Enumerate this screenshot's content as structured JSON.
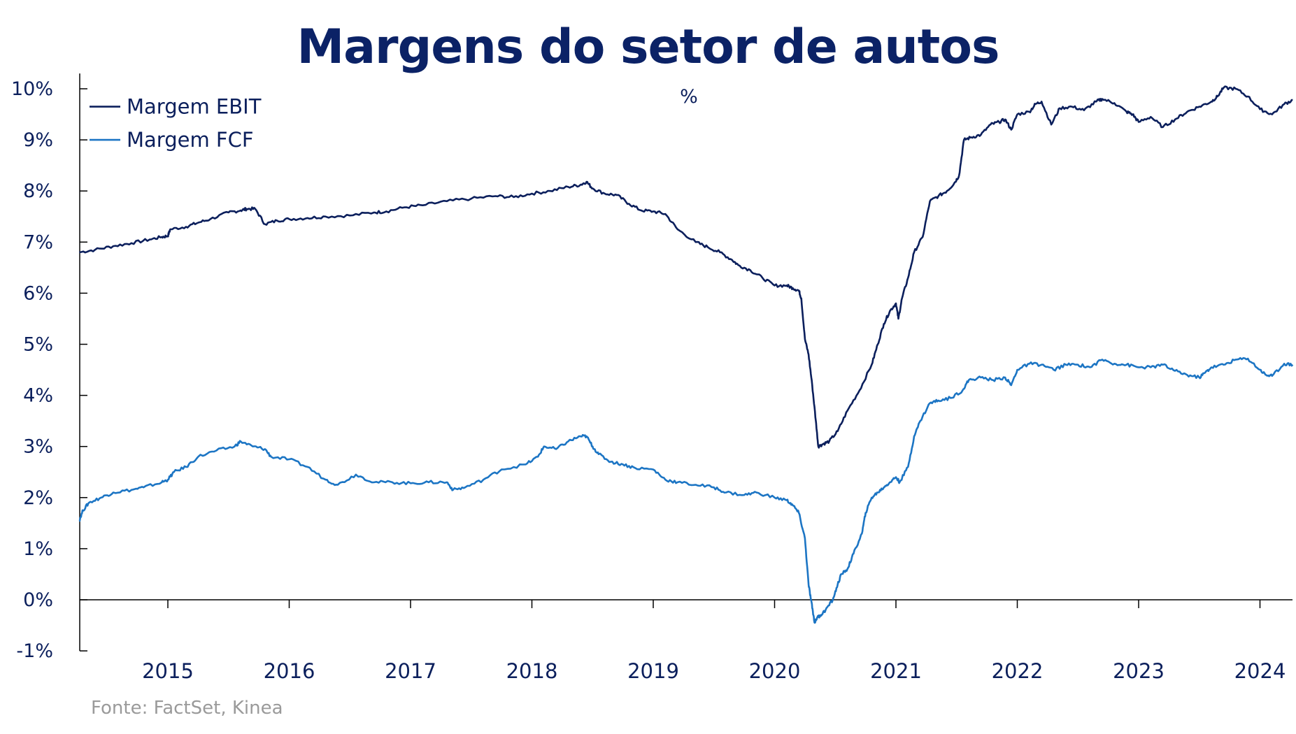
{
  "chart_data": {
    "type": "line",
    "title": "Margens do setor de autos",
    "unit": "%",
    "source": "Fonte: FactSet, Kinea",
    "y_ticks": [
      "10%",
      "9%",
      "8%",
      "7%",
      "6%",
      "5%",
      "4%",
      "3%",
      "2%",
      "1%",
      "0%",
      "-1%"
    ],
    "y_tick_values": [
      10,
      9,
      8,
      7,
      6,
      5,
      4,
      3,
      2,
      1,
      0,
      -1
    ],
    "x_ticks": [
      "2015",
      "2016",
      "2017",
      "2018",
      "2019",
      "2020",
      "2021",
      "2022",
      "2023",
      "2024"
    ],
    "x_tick_values": [
      2015,
      2016,
      2017,
      2018,
      2019,
      2020,
      2021,
      2022,
      2023,
      2024
    ],
    "xlim": [
      2014.27,
      2024.27
    ],
    "ylim": [
      -1,
      10.3
    ],
    "legend": "top-left",
    "series": [
      {
        "name": "Margem EBIT",
        "color": "#0b1f5c",
        "x": [
          2014.27,
          2014.4,
          2014.55,
          2014.7,
          2014.85,
          2014.95,
          2015.0,
          2015.02,
          2015.15,
          2015.25,
          2015.35,
          2015.5,
          2015.6,
          2015.65,
          2015.72,
          2015.8,
          2015.9,
          2016.0,
          2016.15,
          2016.3,
          2016.5,
          2016.7,
          2016.8,
          2016.95,
          2017.1,
          2017.3,
          2017.5,
          2017.7,
          2017.85,
          2018.0,
          2018.15,
          2018.3,
          2018.4,
          2018.45,
          2018.5,
          2018.6,
          2018.7,
          2018.8,
          2018.9,
          2019.0,
          2019.1,
          2019.2,
          2019.35,
          2019.45,
          2019.55,
          2019.65,
          2019.7,
          2019.8,
          2019.9,
          2020.0,
          2020.1,
          2020.15,
          2020.2,
          2020.22,
          2020.25,
          2020.28,
          2020.31,
          2020.34,
          2020.36,
          2020.4,
          2020.45,
          2020.52,
          2020.6,
          2020.7,
          2020.8,
          2020.85,
          2020.9,
          2020.95,
          2021.0,
          2021.02,
          2021.05,
          2021.1,
          2021.15,
          2021.22,
          2021.28,
          2021.35,
          2021.42,
          2021.48,
          2021.52,
          2021.56,
          2021.62,
          2021.7,
          2021.78,
          2021.85,
          2021.9,
          2021.95,
          2022.0,
          2022.1,
          2022.15,
          2022.2,
          2022.28,
          2022.35,
          2022.45,
          2022.55,
          2022.65,
          2022.7,
          2022.8,
          2022.9,
          2022.95,
          2023.0,
          2023.1,
          2023.2,
          2023.3,
          2023.4,
          2023.5,
          2023.6,
          2023.65,
          2023.7,
          2023.8,
          2023.9,
          2024.0,
          2024.1,
          2024.2,
          2024.27
        ],
        "y": [
          6.8,
          6.85,
          6.92,
          6.98,
          7.05,
          7.1,
          7.12,
          7.25,
          7.3,
          7.38,
          7.45,
          7.58,
          7.62,
          7.65,
          7.65,
          7.35,
          7.42,
          7.45,
          7.47,
          7.5,
          7.52,
          7.58,
          7.6,
          7.68,
          7.72,
          7.8,
          7.85,
          7.9,
          7.88,
          7.95,
          8.0,
          8.08,
          8.12,
          8.18,
          8.05,
          7.95,
          7.92,
          7.75,
          7.62,
          7.6,
          7.55,
          7.25,
          7.0,
          6.9,
          6.8,
          6.65,
          6.55,
          6.45,
          6.3,
          6.15,
          6.15,
          6.1,
          6.05,
          5.9,
          5.1,
          4.8,
          4.2,
          3.5,
          3.0,
          3.05,
          3.1,
          3.3,
          3.7,
          4.1,
          4.6,
          5.0,
          5.4,
          5.65,
          5.8,
          5.5,
          5.9,
          6.3,
          6.8,
          7.1,
          7.8,
          7.9,
          8.0,
          8.15,
          8.3,
          9.0,
          9.05,
          9.1,
          9.3,
          9.35,
          9.4,
          9.2,
          9.5,
          9.55,
          9.7,
          9.75,
          9.3,
          9.62,
          9.65,
          9.58,
          9.75,
          9.8,
          9.72,
          9.55,
          9.5,
          9.35,
          9.45,
          9.25,
          9.4,
          9.55,
          9.65,
          9.75,
          9.85,
          10.02,
          10.0,
          9.85,
          9.6,
          9.5,
          9.7,
          9.78
        ],
        "legend_y": 9.65
      },
      {
        "name": "Margem FCF",
        "color": "#1c75c4",
        "x": [
          2014.27,
          2014.3,
          2014.35,
          2014.45,
          2014.55,
          2014.7,
          2014.8,
          2014.95,
          2015.0,
          2015.05,
          2015.15,
          2015.25,
          2015.4,
          2015.55,
          2015.6,
          2015.7,
          2015.8,
          2015.85,
          2016.0,
          2016.15,
          2016.3,
          2016.4,
          2016.55,
          2016.7,
          2016.85,
          2017.0,
          2017.15,
          2017.3,
          2017.35,
          2017.45,
          2017.6,
          2017.75,
          2017.95,
          2018.05,
          2018.1,
          2018.2,
          2018.3,
          2018.4,
          2018.45,
          2018.5,
          2018.55,
          2018.65,
          2018.75,
          2018.85,
          2019.0,
          2019.1,
          2019.2,
          2019.35,
          2019.5,
          2019.6,
          2019.75,
          2019.85,
          2020.0,
          2020.1,
          2020.15,
          2020.2,
          2020.25,
          2020.28,
          2020.3,
          2020.32,
          2020.33,
          2020.35,
          2020.38,
          2020.42,
          2020.48,
          2020.52,
          2020.55,
          2020.6,
          2020.65,
          2020.72,
          2020.75,
          2020.8,
          2020.85,
          2020.9,
          2020.95,
          2021.0,
          2021.03,
          2021.1,
          2021.15,
          2021.2,
          2021.28,
          2021.35,
          2021.45,
          2021.55,
          2021.6,
          2021.7,
          2021.8,
          2021.9,
          2021.95,
          2022.0,
          2022.1,
          2022.2,
          2022.3,
          2022.4,
          2022.5,
          2022.6,
          2022.7,
          2022.8,
          2022.9,
          2023.0,
          2023.1,
          2023.2,
          2023.3,
          2023.4,
          2023.5,
          2023.55,
          2023.6,
          2023.7,
          2023.8,
          2023.9,
          2024.0,
          2024.05,
          2024.1,
          2024.2,
          2024.27
        ],
        "y": [
          1.55,
          1.75,
          1.9,
          2.0,
          2.1,
          2.15,
          2.2,
          2.3,
          2.35,
          2.5,
          2.6,
          2.8,
          2.92,
          3.0,
          3.1,
          3.0,
          2.95,
          2.8,
          2.75,
          2.6,
          2.35,
          2.25,
          2.45,
          2.3,
          2.3,
          2.28,
          2.3,
          2.3,
          2.15,
          2.2,
          2.35,
          2.55,
          2.65,
          2.8,
          3.0,
          2.95,
          3.1,
          3.2,
          3.2,
          3.0,
          2.85,
          2.7,
          2.65,
          2.58,
          2.55,
          2.35,
          2.3,
          2.25,
          2.2,
          2.1,
          2.05,
          2.1,
          2.0,
          1.95,
          1.85,
          1.7,
          1.2,
          0.3,
          0.0,
          -0.3,
          -0.45,
          -0.35,
          -0.3,
          -0.2,
          0.0,
          0.3,
          0.5,
          0.6,
          0.9,
          1.3,
          1.7,
          2.0,
          2.1,
          2.2,
          2.3,
          2.4,
          2.3,
          2.6,
          3.2,
          3.5,
          3.85,
          3.9,
          3.95,
          4.1,
          4.3,
          4.35,
          4.3,
          4.35,
          4.2,
          4.5,
          4.62,
          4.6,
          4.5,
          4.6,
          4.6,
          4.55,
          4.7,
          4.62,
          4.6,
          4.55,
          4.55,
          4.6,
          4.48,
          4.4,
          4.35,
          4.45,
          4.55,
          4.6,
          4.7,
          4.72,
          4.5,
          4.4,
          4.38,
          4.62,
          4.6
        ],
        "legend_y": 9.0
      }
    ]
  }
}
